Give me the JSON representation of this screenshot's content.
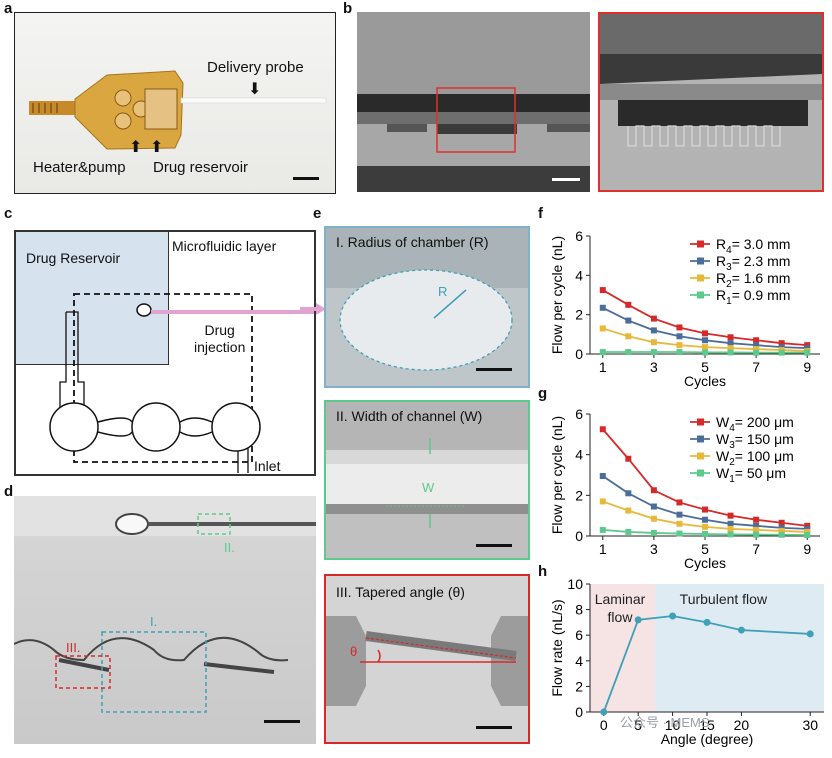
{
  "panel_labels": {
    "a": "a",
    "b": "b",
    "c": "c",
    "d": "d",
    "e": "e",
    "f": "f",
    "g": "g",
    "h": "h"
  },
  "panel_a": {
    "delivery_probe": "Delivery probe",
    "heater_pump": "Heater&pump",
    "drug_reservoir": "Drug reservoir"
  },
  "panel_c": {
    "drug_reservoir": "Drug Reservoir",
    "microfluidic_layer": "Microfluidic layer",
    "drug_injection": "Drug\ninjection",
    "inlet": "Inlet"
  },
  "panel_d": {
    "label_I": "I.",
    "label_II": "II.",
    "label_III": "III."
  },
  "panel_e": {
    "title_I": "I. Radius of chamber (R)",
    "r_label": "R",
    "title_II": "II. Width of channel (W)",
    "w_label": "W",
    "title_III": "III. Tapered angle (θ)",
    "theta_label": "θ"
  },
  "watermark": "公众号 · MEMS",
  "colors": {
    "red": "#d62a2a",
    "blue": "#4a6d9a",
    "yellow": "#e8b83a",
    "green": "#5ec98c",
    "teal": "#3fa0b7",
    "pink": "#e3a3d0"
  },
  "chart_data": [
    {
      "type": "line",
      "panel": "f",
      "x": [
        1,
        2,
        3,
        4,
        5,
        6,
        7,
        8,
        9
      ],
      "xlabel": "Cycles",
      "ylabel": "Flow per cycle (nL)",
      "ylim": [
        0,
        6
      ],
      "xticks": [
        1,
        3,
        5,
        7,
        9
      ],
      "yticks": [
        0,
        2,
        4,
        6
      ],
      "legend": "top-right",
      "series": [
        {
          "name": "R4= 3.0 mm",
          "sub": "4",
          "base": "R",
          "rest": "= 3.0 mm",
          "color": "#d62a2a",
          "values": [
            3.25,
            2.5,
            1.8,
            1.35,
            1.05,
            0.85,
            0.7,
            0.55,
            0.45
          ]
        },
        {
          "name": "R3= 2.3 mm",
          "sub": "3",
          "base": "R",
          "rest": "= 2.3 mm",
          "color": "#4a6d9a",
          "values": [
            2.35,
            1.7,
            1.2,
            0.9,
            0.7,
            0.55,
            0.45,
            0.35,
            0.3
          ]
        },
        {
          "name": "R2= 1.6 mm",
          "sub": "2",
          "base": "R",
          "rest": "= 1.6 mm",
          "color": "#e8b83a",
          "values": [
            1.3,
            0.9,
            0.6,
            0.45,
            0.35,
            0.3,
            0.25,
            0.2,
            0.15
          ]
        },
        {
          "name": "R1= 0.9 mm",
          "sub": "1",
          "base": "R",
          "rest": "= 0.9 mm",
          "color": "#5ec98c",
          "values": [
            0.1,
            0.1,
            0.1,
            0.1,
            0.08,
            0.08,
            0.07,
            0.07,
            0.07
          ]
        }
      ]
    },
    {
      "type": "line",
      "panel": "g",
      "x": [
        1,
        2,
        3,
        4,
        5,
        6,
        7,
        8,
        9
      ],
      "xlabel": "Cycles",
      "ylabel": "Flow per cycle (nL)",
      "ylim": [
        0,
        6
      ],
      "xticks": [
        1,
        3,
        5,
        7,
        9
      ],
      "yticks": [
        0,
        2,
        4,
        6
      ],
      "legend": "top-right",
      "series": [
        {
          "name": "W4= 200 μm",
          "sub": "4",
          "base": "W",
          "rest": "= 200 μm",
          "color": "#d62a2a",
          "values": [
            5.25,
            3.8,
            2.25,
            1.65,
            1.3,
            1.0,
            0.8,
            0.65,
            0.5
          ]
        },
        {
          "name": "W3= 150 μm",
          "sub": "3",
          "base": "W",
          "rest": "= 150 μm",
          "color": "#4a6d9a",
          "values": [
            2.95,
            2.1,
            1.45,
            1.05,
            0.8,
            0.6,
            0.5,
            0.4,
            0.35
          ]
        },
        {
          "name": "W2= 100 μm",
          "sub": "2",
          "base": "W",
          "rest": "= 100 μm",
          "color": "#e8b83a",
          "values": [
            1.7,
            1.25,
            0.85,
            0.6,
            0.45,
            0.35,
            0.3,
            0.25,
            0.2
          ]
        },
        {
          "name": "W1=   50 μm",
          "sub": "1",
          "base": "W",
          "rest": "=   50 μm",
          "color": "#5ec98c",
          "values": [
            0.3,
            0.2,
            0.15,
            0.12,
            0.1,
            0.08,
            0.07,
            0.06,
            0.05
          ]
        }
      ]
    },
    {
      "type": "line",
      "panel": "h",
      "x": [
        0,
        5,
        10,
        15,
        20,
        30
      ],
      "values": [
        0,
        7.2,
        7.5,
        7.0,
        6.4,
        6.1
      ],
      "xlabel": "Angle (degree)",
      "ylabel": "Flow rate (nL/s)",
      "ylim": [
        0,
        10
      ],
      "xlim": [
        -2,
        32
      ],
      "xticks": [
        0,
        5,
        10,
        15,
        20,
        30
      ],
      "yticks": [
        0,
        2,
        4,
        6,
        8,
        10
      ],
      "regions": [
        {
          "label": "Laminar\nflow",
          "from": -2,
          "to": 7.5,
          "color": "#f6e3e4"
        },
        {
          "label": "Turbulent flow",
          "from": 7.5,
          "to": 32,
          "color": "#dfebf3"
        }
      ],
      "color": "#3fa0b7"
    }
  ]
}
